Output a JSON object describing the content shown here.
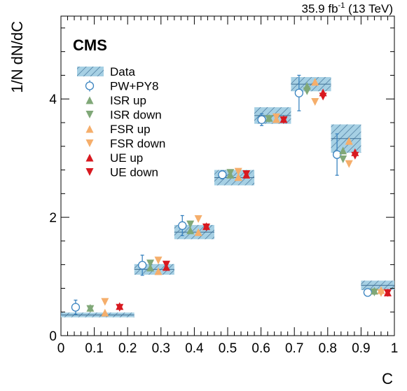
{
  "colors": {
    "data_band": "#a6d0e4",
    "data_hatch": "#3f6f95",
    "nominal": "#3b84c0",
    "isr": "#80a878",
    "fsr": "#f5ae6b",
    "ue": "#d81920"
  },
  "chart_data": {
    "type": "scatter",
    "title": "",
    "experiment_label": "CMS",
    "lumi_label": "35.9 fb",
    "lumi_sup": "-1",
    "lumi_energy": " (13 TeV)",
    "xlabel": "C",
    "ylabel": "1/N dN/dC",
    "xlim": [
      0,
      1
    ],
    "ylim": [
      0,
      5.4
    ],
    "xticks": [
      0,
      0.1,
      0.2,
      0.3,
      0.4,
      0.5,
      0.6,
      0.7,
      0.8,
      0.9,
      1
    ],
    "xtick_labels": [
      "0",
      "0.1",
      "0.2",
      "0.3",
      "0.4",
      "0.5",
      "0.6",
      "0.7",
      "0.8",
      "0.9",
      "1"
    ],
    "yticks": [
      0,
      2,
      4
    ],
    "ytick_labels": [
      "0",
      "2",
      "4"
    ],
    "legend_placement": "top-left",
    "bins": [
      [
        0,
        0.22
      ],
      [
        0.22,
        0.34
      ],
      [
        0.34,
        0.46
      ],
      [
        0.46,
        0.58
      ],
      [
        0.58,
        0.69
      ],
      [
        0.69,
        0.81
      ],
      [
        0.81,
        0.9
      ],
      [
        0.9,
        1.0
      ]
    ],
    "data": {
      "name": "Data",
      "values": [
        0.35,
        1.12,
        1.75,
        2.67,
        3.72,
        4.25,
        3.33,
        0.85
      ],
      "uncertainty": [
        0.04,
        0.09,
        0.12,
        0.13,
        0.14,
        0.12,
        0.24,
        0.08
      ]
    },
    "series": [
      {
        "name": "PW+PY8",
        "marker": "open-circle",
        "color": "nominal",
        "offset": 0,
        "values": [
          0.48,
          1.19,
          1.86,
          2.72,
          3.65,
          4.1,
          3.06,
          0.73
        ],
        "errors": [
          0.12,
          0.17,
          0.17,
          0.07,
          0.1,
          0.3,
          0.35,
          0.06
        ]
      },
      {
        "name": "ISR up",
        "marker": "triangle-up",
        "color": "isr",
        "offset": 1,
        "values": [
          0.47,
          1.15,
          1.78,
          2.72,
          3.68,
          4.22,
          3.13,
          0.76
        ]
      },
      {
        "name": "ISR down",
        "marker": "triangle-down",
        "color": "isr",
        "offset": 1,
        "values": [
          0.45,
          1.22,
          1.88,
          2.75,
          3.66,
          4.13,
          2.98,
          0.73
        ]
      },
      {
        "name": "FSR up",
        "marker": "triangle-up",
        "color": "fsr",
        "offset": 2,
        "values": [
          0.39,
          1.09,
          1.75,
          2.68,
          3.66,
          4.29,
          3.29,
          0.77
        ]
      },
      {
        "name": "FSR down",
        "marker": "triangle-down",
        "color": "fsr",
        "offset": 2,
        "values": [
          0.57,
          1.27,
          1.97,
          2.77,
          3.69,
          3.95,
          2.9,
          0.72
        ]
      },
      {
        "name": "UE up",
        "marker": "triangle-up",
        "color": "ue",
        "offset": 3,
        "values": [
          0.5,
          1.16,
          1.85,
          2.72,
          3.66,
          4.11,
          3.1,
          0.73
        ]
      },
      {
        "name": "UE down",
        "marker": "triangle-down",
        "color": "ue",
        "offset": 3,
        "values": [
          0.47,
          1.2,
          1.83,
          2.73,
          3.64,
          4.04,
          3.04,
          0.72
        ]
      }
    ],
    "data_legend_label": "Data"
  }
}
